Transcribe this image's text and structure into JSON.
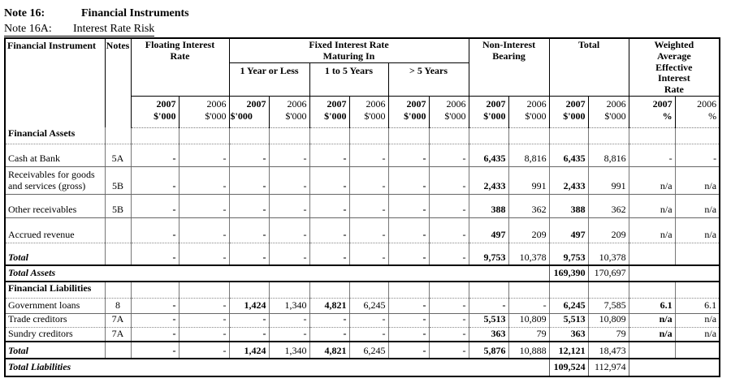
{
  "title": {
    "note_label": "Note 16:",
    "note_title": "Financial Instruments",
    "sub_label": "Note 16A:",
    "sub_title": "Interest Rate Risk"
  },
  "header": {
    "col_instrument": "Financial Instrument",
    "col_notes": "Notes",
    "group_floating": "Floating Interest\nRate",
    "group_fixed": "Fixed Interest Rate\nMaturing In",
    "sub_1yr": "1 Year or Less",
    "sub_1to5": "1 to 5  Years",
    "sub_gt5": ">  5 Years",
    "group_nib": "Non-Interest\nBearing",
    "group_total": "Total",
    "group_wa": "Weighted\nAverage\nEffective\nInterest\nRate",
    "year_2007": "2007",
    "year_2006": "2006",
    "unit_thousands": "$'000",
    "unit_percent": "%"
  },
  "rows": [
    {
      "kind": "section",
      "sep": "dot",
      "label": "Financial Assets",
      "note": "",
      "cells": [
        "",
        "",
        "",
        "",
        "",
        "",
        "",
        "",
        "",
        "",
        "",
        "",
        "",
        ""
      ]
    },
    {
      "kind": "data",
      "sep": "solid",
      "label": "Cash at Bank",
      "note": "5A",
      "cells": [
        "-",
        "-",
        "-",
        "-",
        "-",
        "-",
        "-",
        "-",
        "6,435",
        "8,816",
        "6,435",
        "8,816",
        "-",
        "-"
      ]
    },
    {
      "kind": "data",
      "sep": "solid",
      "label": "Receivables for goods and services (gross)",
      "note": "5B",
      "cells": [
        "-",
        "-",
        "-",
        "-",
        "-",
        "-",
        "-",
        "-",
        "2,433",
        "991",
        "2,433",
        "991",
        "n/a",
        "n/a"
      ]
    },
    {
      "kind": "data",
      "sep": "solid",
      "label": "Other receivables",
      "note": "5B",
      "cells": [
        "-",
        "-",
        "-",
        "-",
        "-",
        "-",
        "-",
        "-",
        "388",
        "362",
        "388",
        "362",
        "n/a",
        "n/a"
      ]
    },
    {
      "kind": "data",
      "sep": "dot",
      "label": "Accrued revenue",
      "note": "",
      "cells": [
        "-",
        "-",
        "-",
        "-",
        "-",
        "-",
        "-",
        "-",
        "497",
        "209",
        "497",
        "209",
        "n/a",
        "n/a"
      ]
    },
    {
      "kind": "total",
      "sep": "thick",
      "label": "Total",
      "note": "",
      "cells": [
        "-",
        "-",
        "-",
        "-",
        "-",
        "-",
        "-",
        "-",
        "9,753",
        "10,378",
        "9,753",
        "10,378",
        "",
        ""
      ]
    },
    {
      "kind": "grand",
      "sep": "thick",
      "label": "Total Assets",
      "t2007": "169,390",
      "t2006": "170,697"
    },
    {
      "kind": "section",
      "sep": "dot",
      "label": "Financial Liabilities",
      "note": "",
      "cells": [
        "",
        "",
        "",
        "",
        "",
        "",
        "",
        "",
        "",
        "",
        "",
        "",
        "",
        ""
      ]
    },
    {
      "kind": "data",
      "sep": "solid",
      "label": "Government loans",
      "note": "8",
      "waBold": true,
      "cells": [
        "-",
        "-",
        "1,424",
        "1,340",
        "4,821",
        "6,245",
        "-",
        "-",
        "-",
        "-",
        "6,245",
        "7,585",
        "6.1",
        "6.1"
      ]
    },
    {
      "kind": "data",
      "sep": "dot",
      "label": "Trade creditors",
      "note": "7A",
      "waBold": true,
      "cells": [
        "-",
        "-",
        "-",
        "-",
        "-",
        "-",
        "-",
        "-",
        "5,513",
        "10,809",
        "5,513",
        "10,809",
        "n/a",
        "n/a"
      ]
    },
    {
      "kind": "data",
      "sep": "thick",
      "label": "Sundry creditors",
      "note": "7A",
      "waBold": true,
      "cells": [
        "-",
        "-",
        "-",
        "-",
        "-",
        "-",
        "-",
        "-",
        "363",
        "79",
        "363",
        "79",
        "n/a",
        "n/a"
      ]
    },
    {
      "kind": "total",
      "sep": "thick",
      "label": "Total",
      "note": "",
      "cells": [
        "-",
        "-",
        "1,424",
        "1,340",
        "4,821",
        "6,245",
        "-",
        "-",
        "5,876",
        "10,888",
        "12,121",
        "18,473",
        "",
        ""
      ]
    },
    {
      "kind": "grand",
      "sep": "none",
      "label": "Total Liabilities",
      "t2007": "109,524",
      "t2006": "112,974"
    }
  ]
}
